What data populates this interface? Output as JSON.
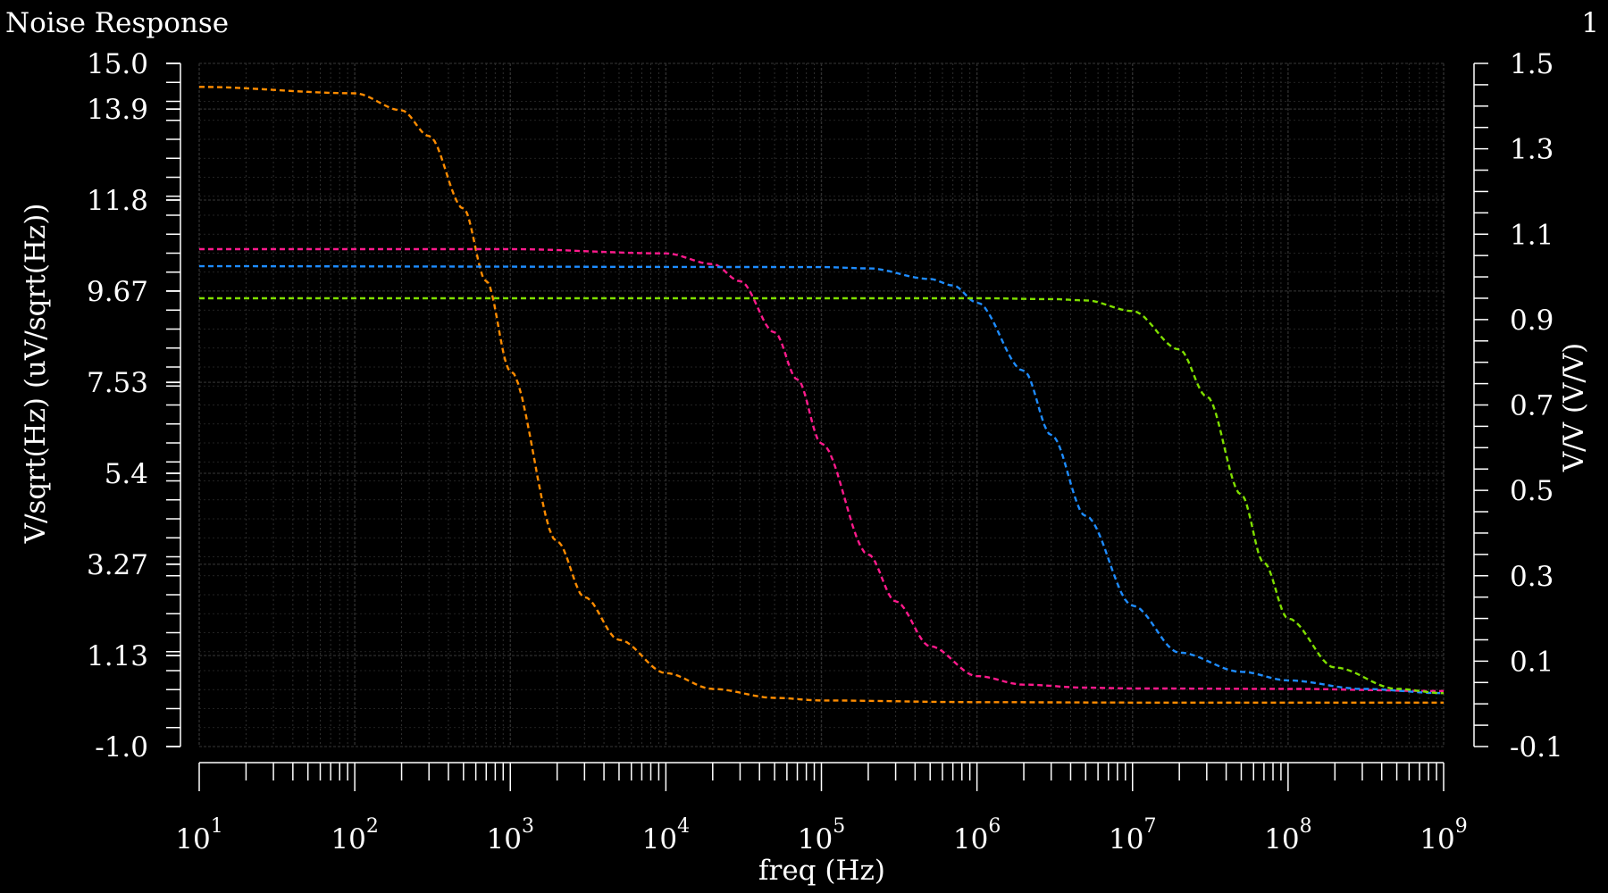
{
  "header": {
    "title": "Noise Response",
    "index_label": "1"
  },
  "chart_data": {
    "type": "line",
    "title": "Noise Response",
    "xlabel": "freq (Hz)",
    "ylabel_left": "V/sqrt(Hz)  (uV/sqrt(Hz))",
    "ylabel_right": "V/V (V/V)",
    "x_scale": "log",
    "xlim": [
      10,
      1000000000
    ],
    "x_tick_labels": [
      {
        "base": "10",
        "exp": "1"
      },
      {
        "base": "10",
        "exp": "2"
      },
      {
        "base": "10",
        "exp": "3"
      },
      {
        "base": "10",
        "exp": "4"
      },
      {
        "base": "10",
        "exp": "5"
      },
      {
        "base": "10",
        "exp": "6"
      },
      {
        "base": "10",
        "exp": "7"
      },
      {
        "base": "10",
        "exp": "8"
      },
      {
        "base": "10",
        "exp": "9"
      }
    ],
    "ylim_left": [
      -1.0,
      15.0
    ],
    "y_ticks_left": [
      "15.0",
      "13.9",
      "11.8",
      "9.67",
      "7.53",
      "5.4",
      "3.27",
      "1.13",
      "-1.0"
    ],
    "y_tick_values_left": [
      15.0,
      13.93,
      11.8,
      9.67,
      7.53,
      5.4,
      3.27,
      1.13,
      -1.0
    ],
    "ylim_right": [
      -0.1,
      1.5
    ],
    "y_ticks_right": [
      "1.5",
      "1.3",
      "1.1",
      "0.9",
      "0.7",
      "0.5",
      "0.3",
      "0.1",
      "-0.1"
    ],
    "y_tick_values_right": [
      1.5,
      1.3,
      1.1,
      0.9,
      0.7,
      0.5,
      0.3,
      0.1,
      -0.1
    ],
    "grid": true,
    "line_style": "dashed",
    "colors": {
      "background": "#000000",
      "grid": "#2e2e2e",
      "axis": "#ffffff",
      "text": "#ffffff"
    },
    "series": [
      {
        "color": "#ff8c00",
        "axis": "left",
        "x": [
          10,
          100,
          200,
          300,
          500,
          700,
          1000,
          2000,
          3000,
          5000,
          10000,
          20000,
          50000,
          100000,
          1000000,
          10000000,
          100000000,
          1000000000
        ],
        "values": [
          14.45,
          14.3,
          13.9,
          13.3,
          11.6,
          9.9,
          7.8,
          3.8,
          2.5,
          1.5,
          0.72,
          0.35,
          0.14,
          0.08,
          0.04,
          0.03,
          0.03,
          0.03
        ]
      },
      {
        "color": "#ff1a8c",
        "axis": "left",
        "x": [
          10,
          1000,
          10000,
          20000,
          30000,
          50000,
          70000,
          100000,
          200000,
          300000,
          500000,
          1000000,
          2000000,
          5000000,
          10000000,
          100000000,
          1000000000
        ],
        "values": [
          10.65,
          10.65,
          10.55,
          10.3,
          9.9,
          8.7,
          7.6,
          6.1,
          3.5,
          2.4,
          1.35,
          0.65,
          0.45,
          0.38,
          0.36,
          0.35,
          0.3
        ]
      },
      {
        "color": "#1e8cff",
        "axis": "left",
        "x": [
          10,
          100000,
          200000,
          500000,
          700000,
          1000000,
          2000000,
          3000000,
          5000000,
          10000000,
          20000000,
          50000000,
          100000000,
          300000000,
          1000000000
        ],
        "values": [
          10.25,
          10.23,
          10.2,
          9.95,
          9.8,
          9.4,
          7.8,
          6.3,
          4.4,
          2.3,
          1.2,
          0.75,
          0.55,
          0.35,
          0.25
        ]
      },
      {
        "color": "#7fdf00",
        "axis": "left",
        "x": [
          10,
          1000000,
          3000000,
          5000000,
          10000000,
          20000000,
          30000000,
          50000000,
          70000000,
          100000000,
          200000000,
          500000000,
          1000000000
        ],
        "values": [
          9.5,
          9.5,
          9.48,
          9.45,
          9.2,
          8.3,
          7.2,
          4.9,
          3.3,
          2.0,
          0.85,
          0.35,
          0.25
        ]
      }
    ]
  }
}
